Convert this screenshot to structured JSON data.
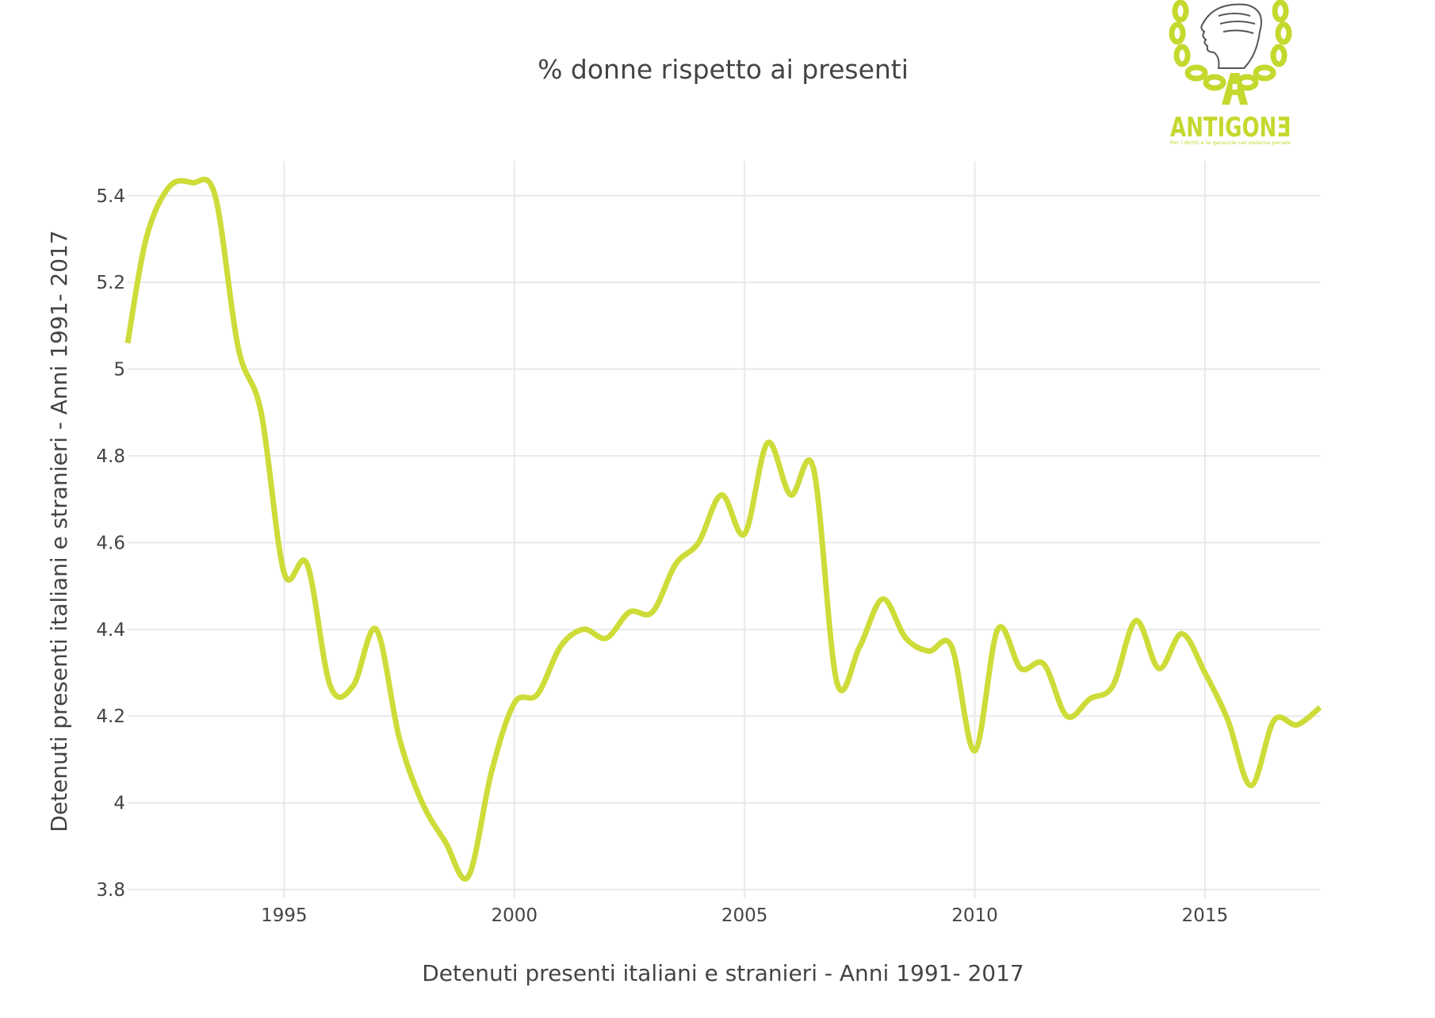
{
  "logo": {
    "name": "ANTIGONE",
    "display_text": "ANTIGONƎ",
    "tagline": "Per i diritti e le garanzie nel sistema penale",
    "color": "#c5d82e"
  },
  "chart_data": {
    "type": "line",
    "title": "% donne rispetto ai presenti",
    "xlabel": "Detenuti presenti italiani e stranieri - Anni 1991- 2017",
    "ylabel": "Detenuti presenti italiani e stranieri - Anni 1991- 2017",
    "xlim": [
      1991.6,
      2017.5
    ],
    "ylim": [
      3.78,
      5.48
    ],
    "x_ticks": [
      1995,
      2000,
      2005,
      2010,
      2015
    ],
    "x_tick_labels": [
      "1995",
      "2000",
      "2005",
      "2010",
      "2015"
    ],
    "y_ticks": [
      3.8,
      4,
      4.2,
      4.4,
      4.6,
      4.8,
      5,
      5.2,
      5.4
    ],
    "y_tick_labels": [
      "3.8",
      "4",
      "4.2",
      "4.4",
      "4.6",
      "4.8",
      "5",
      "5.2",
      "5.4"
    ],
    "grid": true,
    "smoothing": "spline",
    "series": [
      {
        "color": "#cddc39",
        "x": [
          1991.6,
          1992.0,
          1992.5,
          1993.0,
          1993.5,
          1994.0,
          1994.5,
          1995.0,
          1995.5,
          1996.0,
          1996.5,
          1997.0,
          1997.5,
          1998.0,
          1998.5,
          1999.0,
          1999.5,
          2000.0,
          2000.5,
          2001.0,
          2001.5,
          2002.0,
          2002.5,
          2003.0,
          2003.5,
          2004.0,
          2004.5,
          2005.0,
          2005.5,
          2006.0,
          2006.5,
          2007.0,
          2007.5,
          2008.0,
          2008.5,
          2009.0,
          2009.5,
          2010.0,
          2010.5,
          2011.0,
          2011.5,
          2012.0,
          2012.5,
          2013.0,
          2013.5,
          2014.0,
          2014.5,
          2015.0,
          2015.5,
          2016.0,
          2016.5,
          2017.0,
          2017.5
        ],
        "values": [
          5.06,
          5.3,
          5.42,
          5.43,
          5.4,
          5.05,
          4.9,
          4.53,
          4.55,
          4.27,
          4.27,
          4.4,
          4.15,
          4.0,
          3.91,
          3.83,
          4.07,
          4.23,
          4.25,
          4.36,
          4.4,
          4.38,
          4.44,
          4.44,
          4.55,
          4.6,
          4.71,
          4.62,
          4.83,
          4.71,
          4.77,
          4.28,
          4.36,
          4.47,
          4.38,
          4.35,
          4.36,
          4.12,
          4.4,
          4.31,
          4.32,
          4.2,
          4.24,
          4.27,
          4.42,
          4.31,
          4.39,
          4.3,
          4.19,
          4.04,
          4.19,
          4.18,
          4.22
        ]
      }
    ]
  }
}
